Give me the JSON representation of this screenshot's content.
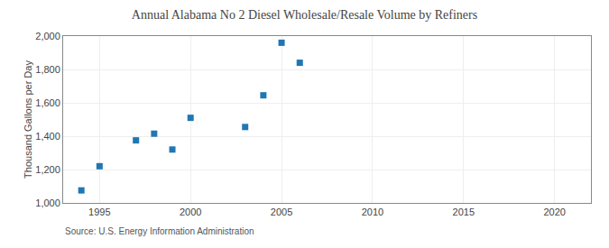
{
  "chart_data": {
    "type": "scatter",
    "title": "Annual Alabama No 2 Diesel Wholesale/Resale Volume by Refiners",
    "ylabel": "Thousand Gallons per Day",
    "annotations": [
      "Source: U.S. Energy Information Administration"
    ],
    "x": [
      1994,
      1995,
      1997,
      1998,
      1999,
      2000,
      2003,
      2004,
      2005,
      2006
    ],
    "values": [
      1075,
      1220,
      1375,
      1415,
      1320,
      1510,
      1455,
      1645,
      1960,
      1840
    ],
    "marker": "square",
    "xlim": [
      1993,
      2022
    ],
    "ylim": [
      1000,
      2000
    ],
    "xticks": [
      1995,
      2000,
      2005,
      2010,
      2015,
      2020
    ],
    "yticks": [
      {
        "value": 1000,
        "label": "1,000"
      },
      {
        "value": 1200,
        "label": "1,200"
      },
      {
        "value": 1400,
        "label": "1,400"
      },
      {
        "value": 1600,
        "label": "1,600"
      },
      {
        "value": 1800,
        "label": "1,800"
      },
      {
        "value": 2000,
        "label": "2,000"
      }
    ],
    "grid": true
  }
}
